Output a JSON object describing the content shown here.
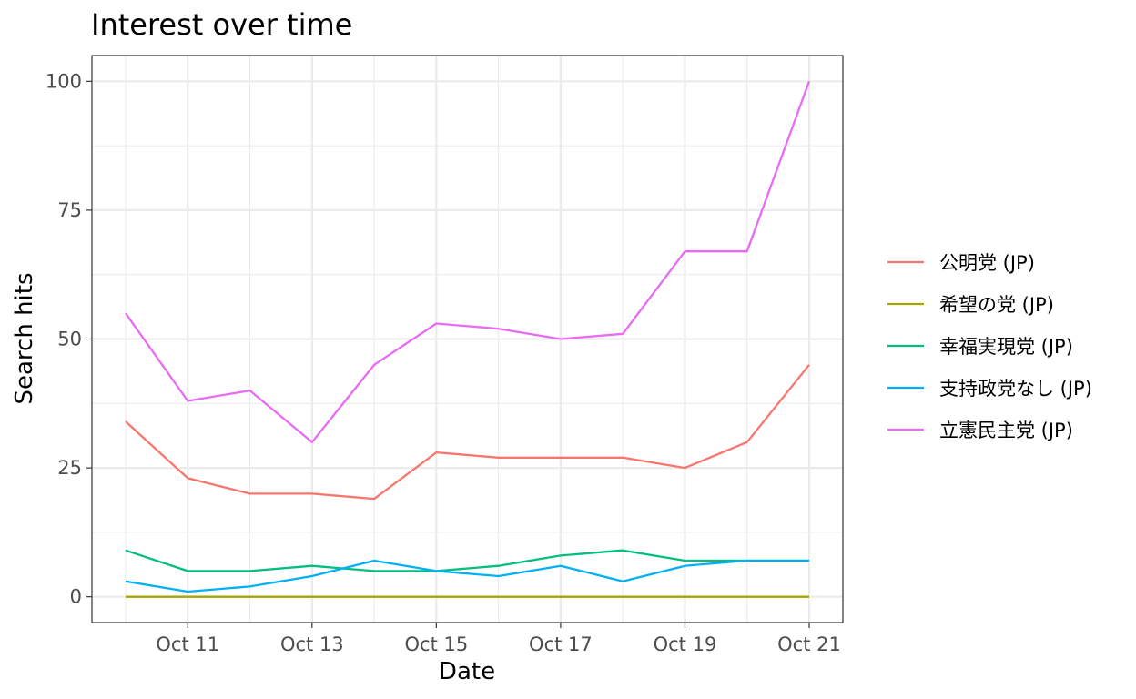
{
  "chart_data": {
    "type": "line",
    "title": "Interest over time",
    "xlabel": "Date",
    "ylabel": "Search hits",
    "x": [
      "Oct 10",
      "Oct 11",
      "Oct 12",
      "Oct 13",
      "Oct 14",
      "Oct 15",
      "Oct 16",
      "Oct 17",
      "Oct 18",
      "Oct 19",
      "Oct 20",
      "Oct 21"
    ],
    "x_ticks": [
      "Oct 11",
      "Oct 13",
      "Oct 15",
      "Oct 17",
      "Oct 19",
      "Oct 21"
    ],
    "y_ticks": [
      0,
      25,
      50,
      75,
      100
    ],
    "ylim": [
      -5,
      105
    ],
    "grid": true,
    "legend_position": "right",
    "series": [
      {
        "name": "公明党 (JP)",
        "color": "#F8766D",
        "values": [
          34,
          23,
          20,
          20,
          19,
          28,
          27,
          27,
          27,
          25,
          30,
          45
        ]
      },
      {
        "name": "希望の党 (JP)",
        "color": "#A3A500",
        "values": [
          0,
          0,
          0,
          0,
          0,
          0,
          0,
          0,
          0,
          0,
          0,
          0
        ]
      },
      {
        "name": "幸福実現党 (JP)",
        "color": "#00BF7D",
        "values": [
          9,
          5,
          5,
          6,
          5,
          5,
          6,
          8,
          9,
          7,
          7,
          7
        ]
      },
      {
        "name": "支持政党なし (JP)",
        "color": "#00B0F6",
        "values": [
          3,
          1,
          2,
          4,
          7,
          5,
          4,
          6,
          3,
          6,
          7,
          7
        ]
      },
      {
        "name": "立憲民主党 (JP)",
        "color": "#E76BF3",
        "values": [
          55,
          38,
          40,
          30,
          45,
          53,
          52,
          50,
          51,
          67,
          67,
          100
        ]
      }
    ]
  }
}
